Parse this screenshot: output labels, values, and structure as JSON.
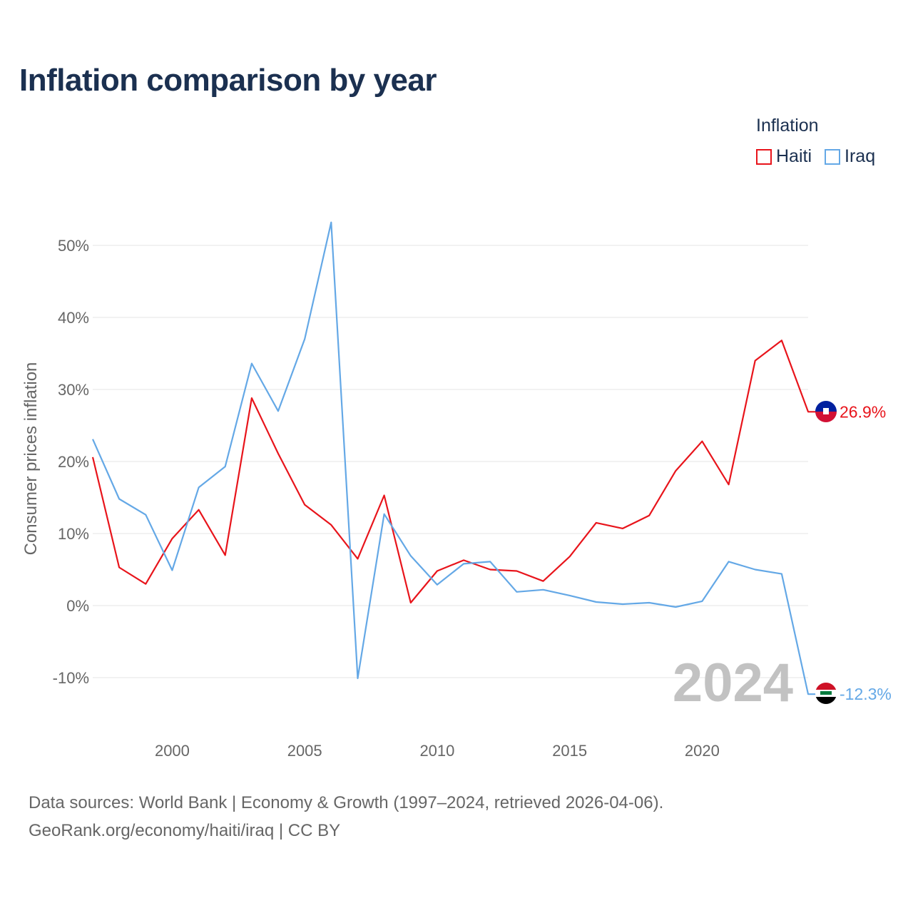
{
  "title": "Inflation comparison by year",
  "legend": {
    "title": "Inflation",
    "items": [
      {
        "name": "Haiti",
        "color": "#e8141b"
      },
      {
        "name": "Iraq",
        "color": "#64a8e6"
      }
    ]
  },
  "footer": {
    "line1": "Data sources: World Bank | Economy & Growth (1997–2024, retrieved 2026-04-06).",
    "line2": "GeoRank.org/economy/haiti/iraq | CC BY"
  },
  "chart_data": {
    "type": "line",
    "title": "Inflation comparison by year",
    "xlabel": "",
    "ylabel": "Consumer prices inflation",
    "x": [
      1997,
      1998,
      1999,
      2000,
      2001,
      2002,
      2003,
      2004,
      2005,
      2006,
      2007,
      2008,
      2009,
      2010,
      2011,
      2012,
      2013,
      2014,
      2015,
      2016,
      2017,
      2018,
      2019,
      2020,
      2021,
      2022,
      2023,
      2024
    ],
    "xlim": [
      1997,
      2024
    ],
    "ylim": [
      -15,
      55
    ],
    "x_ticks": [
      2000,
      2005,
      2010,
      2015,
      2020
    ],
    "x_tick_labels": [
      "2000",
      "2005",
      "2010",
      "2015",
      "2020"
    ],
    "y_ticks": [
      -10,
      0,
      10,
      20,
      30,
      40,
      50
    ],
    "y_tick_labels": [
      "-10%",
      "0%",
      "10%",
      "20%",
      "30%",
      "40%",
      "50%"
    ],
    "grid": true,
    "year_label": "2024",
    "series": [
      {
        "name": "Haiti",
        "color": "#e8141b",
        "end_label": "26.9%",
        "values": [
          20.6,
          5.3,
          3.0,
          9.3,
          13.3,
          7.0,
          28.8,
          21.1,
          14.0,
          11.2,
          6.5,
          15.3,
          0.4,
          4.8,
          6.3,
          5.0,
          4.8,
          3.4,
          6.8,
          11.5,
          10.7,
          12.5,
          18.7,
          22.8,
          16.8,
          34.0,
          36.8,
          26.9
        ]
      },
      {
        "name": "Iraq",
        "color": "#64a8e6",
        "end_label": "-12.3%",
        "values": [
          23.1,
          14.8,
          12.6,
          4.9,
          16.4,
          19.3,
          33.6,
          27.0,
          37.0,
          53.2,
          -10.1,
          12.7,
          6.9,
          2.9,
          5.8,
          6.1,
          1.9,
          2.2,
          1.4,
          0.5,
          0.2,
          0.4,
          -0.2,
          0.6,
          6.1,
          5.0,
          4.4,
          -12.3
        ]
      }
    ]
  }
}
